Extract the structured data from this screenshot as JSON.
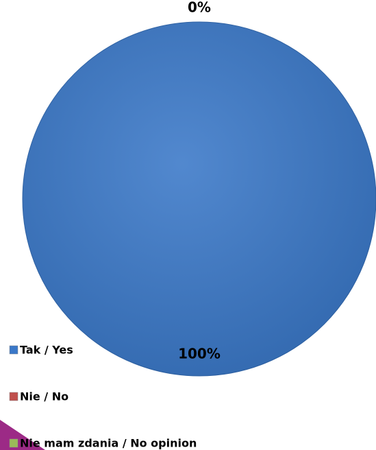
{
  "chart_data": {
    "type": "pie",
    "categories": [
      "Tak / Yes",
      "Nie / No",
      "Nie mam zdania / No opinion"
    ],
    "values": [
      100,
      0,
      0
    ],
    "value_labels": [
      "100%",
      "0%",
      null
    ],
    "colors": [
      "#3a78c8",
      "#c0504d",
      "#9bbb59"
    ]
  }
}
